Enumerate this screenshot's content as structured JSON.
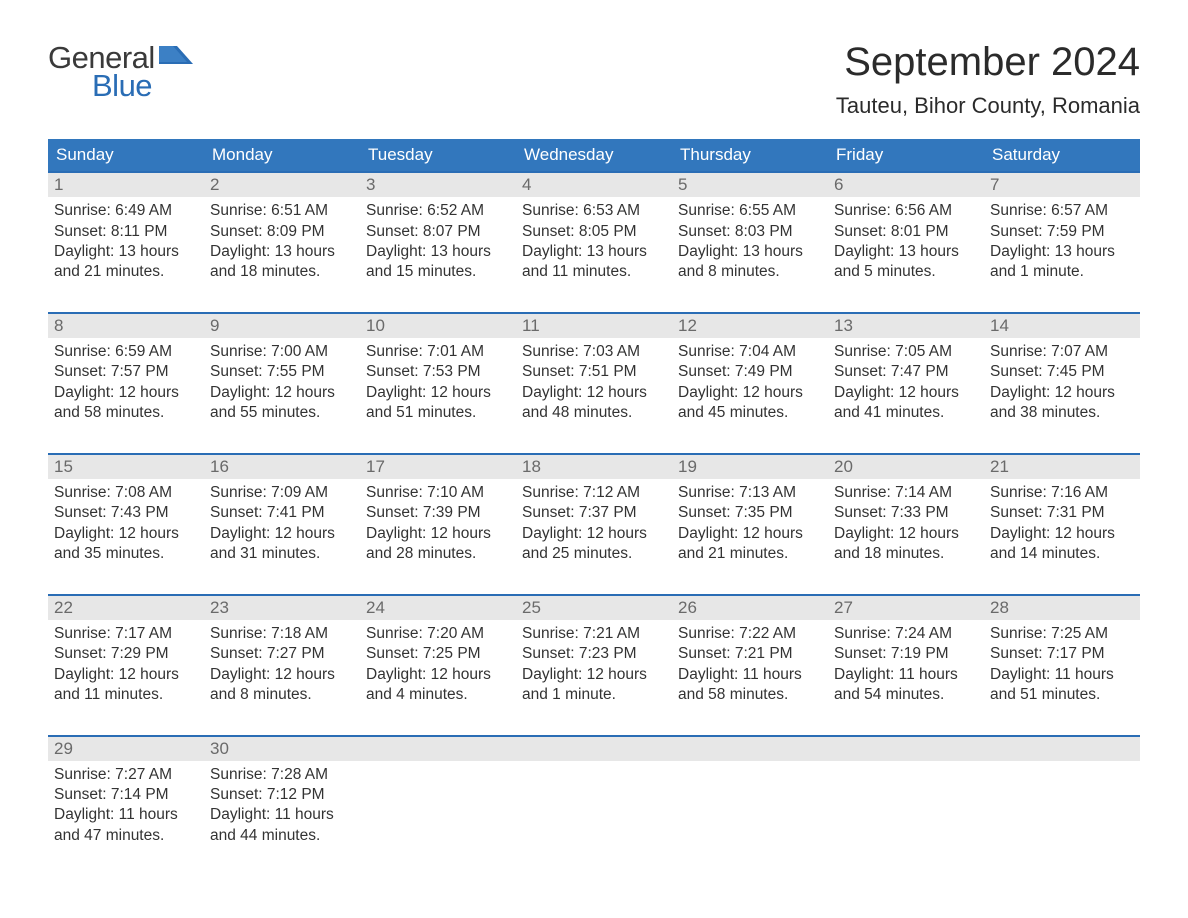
{
  "logo": {
    "text_general": "General",
    "text_blue": "Blue",
    "flag_color": "#2a6db5"
  },
  "title": "September 2024",
  "location": "Tauteu, Bihor County, Romania",
  "colors": {
    "header_bg": "#3277bd",
    "header_text": "#ffffff",
    "week_border": "#2a6db5",
    "daynum_bg": "#e7e7e7",
    "daynum_text": "#6a6a6a",
    "body_text": "#333333",
    "page_bg": "#ffffff"
  },
  "weekdays": [
    "Sunday",
    "Monday",
    "Tuesday",
    "Wednesday",
    "Thursday",
    "Friday",
    "Saturday"
  ],
  "days": [
    {
      "n": "1",
      "sr": "Sunrise: 6:49 AM",
      "ss": "Sunset: 8:11 PM",
      "d1": "Daylight: 13 hours",
      "d2": "and 21 minutes."
    },
    {
      "n": "2",
      "sr": "Sunrise: 6:51 AM",
      "ss": "Sunset: 8:09 PM",
      "d1": "Daylight: 13 hours",
      "d2": "and 18 minutes."
    },
    {
      "n": "3",
      "sr": "Sunrise: 6:52 AM",
      "ss": "Sunset: 8:07 PM",
      "d1": "Daylight: 13 hours",
      "d2": "and 15 minutes."
    },
    {
      "n": "4",
      "sr": "Sunrise: 6:53 AM",
      "ss": "Sunset: 8:05 PM",
      "d1": "Daylight: 13 hours",
      "d2": "and 11 minutes."
    },
    {
      "n": "5",
      "sr": "Sunrise: 6:55 AM",
      "ss": "Sunset: 8:03 PM",
      "d1": "Daylight: 13 hours",
      "d2": "and 8 minutes."
    },
    {
      "n": "6",
      "sr": "Sunrise: 6:56 AM",
      "ss": "Sunset: 8:01 PM",
      "d1": "Daylight: 13 hours",
      "d2": "and 5 minutes."
    },
    {
      "n": "7",
      "sr": "Sunrise: 6:57 AM",
      "ss": "Sunset: 7:59 PM",
      "d1": "Daylight: 13 hours",
      "d2": "and 1 minute."
    },
    {
      "n": "8",
      "sr": "Sunrise: 6:59 AM",
      "ss": "Sunset: 7:57 PM",
      "d1": "Daylight: 12 hours",
      "d2": "and 58 minutes."
    },
    {
      "n": "9",
      "sr": "Sunrise: 7:00 AM",
      "ss": "Sunset: 7:55 PM",
      "d1": "Daylight: 12 hours",
      "d2": "and 55 minutes."
    },
    {
      "n": "10",
      "sr": "Sunrise: 7:01 AM",
      "ss": "Sunset: 7:53 PM",
      "d1": "Daylight: 12 hours",
      "d2": "and 51 minutes."
    },
    {
      "n": "11",
      "sr": "Sunrise: 7:03 AM",
      "ss": "Sunset: 7:51 PM",
      "d1": "Daylight: 12 hours",
      "d2": "and 48 minutes."
    },
    {
      "n": "12",
      "sr": "Sunrise: 7:04 AM",
      "ss": "Sunset: 7:49 PM",
      "d1": "Daylight: 12 hours",
      "d2": "and 45 minutes."
    },
    {
      "n": "13",
      "sr": "Sunrise: 7:05 AM",
      "ss": "Sunset: 7:47 PM",
      "d1": "Daylight: 12 hours",
      "d2": "and 41 minutes."
    },
    {
      "n": "14",
      "sr": "Sunrise: 7:07 AM",
      "ss": "Sunset: 7:45 PM",
      "d1": "Daylight: 12 hours",
      "d2": "and 38 minutes."
    },
    {
      "n": "15",
      "sr": "Sunrise: 7:08 AM",
      "ss": "Sunset: 7:43 PM",
      "d1": "Daylight: 12 hours",
      "d2": "and 35 minutes."
    },
    {
      "n": "16",
      "sr": "Sunrise: 7:09 AM",
      "ss": "Sunset: 7:41 PM",
      "d1": "Daylight: 12 hours",
      "d2": "and 31 minutes."
    },
    {
      "n": "17",
      "sr": "Sunrise: 7:10 AM",
      "ss": "Sunset: 7:39 PM",
      "d1": "Daylight: 12 hours",
      "d2": "and 28 minutes."
    },
    {
      "n": "18",
      "sr": "Sunrise: 7:12 AM",
      "ss": "Sunset: 7:37 PM",
      "d1": "Daylight: 12 hours",
      "d2": "and 25 minutes."
    },
    {
      "n": "19",
      "sr": "Sunrise: 7:13 AM",
      "ss": "Sunset: 7:35 PM",
      "d1": "Daylight: 12 hours",
      "d2": "and 21 minutes."
    },
    {
      "n": "20",
      "sr": "Sunrise: 7:14 AM",
      "ss": "Sunset: 7:33 PM",
      "d1": "Daylight: 12 hours",
      "d2": "and 18 minutes."
    },
    {
      "n": "21",
      "sr": "Sunrise: 7:16 AM",
      "ss": "Sunset: 7:31 PM",
      "d1": "Daylight: 12 hours",
      "d2": "and 14 minutes."
    },
    {
      "n": "22",
      "sr": "Sunrise: 7:17 AM",
      "ss": "Sunset: 7:29 PM",
      "d1": "Daylight: 12 hours",
      "d2": "and 11 minutes."
    },
    {
      "n": "23",
      "sr": "Sunrise: 7:18 AM",
      "ss": "Sunset: 7:27 PM",
      "d1": "Daylight: 12 hours",
      "d2": "and 8 minutes."
    },
    {
      "n": "24",
      "sr": "Sunrise: 7:20 AM",
      "ss": "Sunset: 7:25 PM",
      "d1": "Daylight: 12 hours",
      "d2": "and 4 minutes."
    },
    {
      "n": "25",
      "sr": "Sunrise: 7:21 AM",
      "ss": "Sunset: 7:23 PM",
      "d1": "Daylight: 12 hours",
      "d2": "and 1 minute."
    },
    {
      "n": "26",
      "sr": "Sunrise: 7:22 AM",
      "ss": "Sunset: 7:21 PM",
      "d1": "Daylight: 11 hours",
      "d2": "and 58 minutes."
    },
    {
      "n": "27",
      "sr": "Sunrise: 7:24 AM",
      "ss": "Sunset: 7:19 PM",
      "d1": "Daylight: 11 hours",
      "d2": "and 54 minutes."
    },
    {
      "n": "28",
      "sr": "Sunrise: 7:25 AM",
      "ss": "Sunset: 7:17 PM",
      "d1": "Daylight: 11 hours",
      "d2": "and 51 minutes."
    },
    {
      "n": "29",
      "sr": "Sunrise: 7:27 AM",
      "ss": "Sunset: 7:14 PM",
      "d1": "Daylight: 11 hours",
      "d2": "and 47 minutes."
    },
    {
      "n": "30",
      "sr": "Sunrise: 7:28 AM",
      "ss": "Sunset: 7:12 PM",
      "d1": "Daylight: 11 hours",
      "d2": "and 44 minutes."
    }
  ]
}
